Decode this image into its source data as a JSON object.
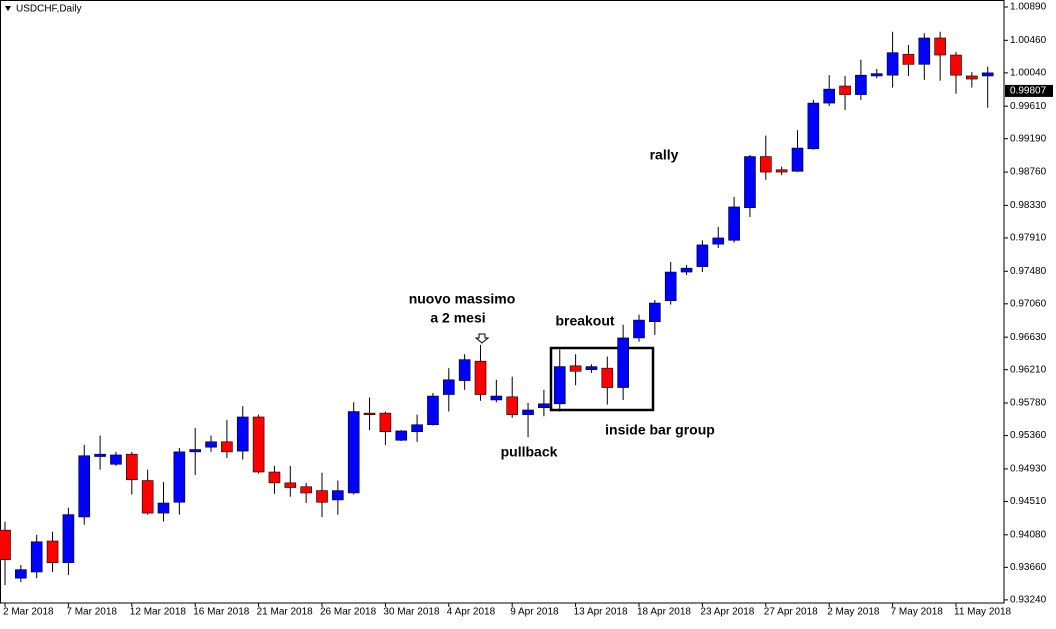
{
  "chart_data": {
    "type": "candlestick",
    "title": "USDCHF,Daily",
    "categories": [
      "2 Mar 2018",
      null,
      null,
      null,
      "7 Mar 2018",
      null,
      null,
      null,
      "12 Mar 2018",
      null,
      null,
      null,
      "16 Mar 2018",
      null,
      null,
      null,
      "21 Mar 2018",
      null,
      null,
      null,
      "26 Mar 2018",
      null,
      null,
      null,
      "30 Mar 2018",
      null,
      null,
      null,
      "4 Apr 2018",
      null,
      null,
      null,
      "9 Apr 2018",
      null,
      null,
      null,
      "13 Apr 2018",
      null,
      null,
      null,
      "18 Apr 2018",
      null,
      null,
      null,
      "23 Apr 2018",
      null,
      null,
      null,
      "27 Apr 2018",
      null,
      null,
      null,
      "2 May 2018",
      null,
      null,
      null,
      "7 May 2018",
      null,
      null,
      null,
      "11 May 2018",
      null,
      null
    ],
    "open": [
      0.9414,
      0.9352,
      0.936,
      0.94,
      0.9372,
      0.9431,
      0.9509,
      0.9499,
      0.9512,
      0.9478,
      0.9436,
      0.945,
      0.9515,
      0.9521,
      0.9528,
      0.9516,
      0.956,
      0.9489,
      0.9475,
      0.947,
      0.9465,
      0.9453,
      0.9462,
      0.9565,
      0.9565,
      0.953,
      0.9541,
      0.955,
      0.9589,
      0.9607,
      0.9632,
      0.9582,
      0.9586,
      0.9563,
      0.9572,
      0.9577,
      0.9626,
      0.9621,
      0.9623,
      0.9598,
      0.9662,
      0.9683,
      0.971,
      0.9747,
      0.9754,
      0.9783,
      0.9788,
      0.983,
      0.9896,
      0.9879,
      0.9877,
      0.9906,
      0.9965,
      0.9987,
      0.9976,
      1.0,
      1.0001,
      1.0028,
      1.0015,
      1.0049,
      1.0027,
      1.0,
      1.0
    ],
    "high": [
      0.9425,
      0.9369,
      0.9408,
      0.9412,
      0.9443,
      0.9524,
      0.9536,
      0.9515,
      0.9515,
      0.9492,
      0.9476,
      0.952,
      0.9546,
      0.9536,
      0.9556,
      0.9574,
      0.9563,
      0.9497,
      0.9497,
      0.9475,
      0.9488,
      0.9478,
      0.9579,
      0.9585,
      0.9567,
      0.9543,
      0.9563,
      0.9591,
      0.9623,
      0.9641,
      0.9653,
      0.9608,
      0.9612,
      0.9578,
      0.9595,
      0.9647,
      0.9641,
      0.9628,
      0.9638,
      0.9679,
      0.9692,
      0.9711,
      0.976,
      0.9756,
      0.9788,
      0.9805,
      0.9844,
      0.9898,
      0.9923,
      0.9883,
      0.993,
      0.9969,
      1.0001,
      1.0,
      1.0021,
      1.0009,
      1.0057,
      1.004,
      1.0055,
      1.0057,
      1.0031,
      1.0005,
      1.0012
    ],
    "low": [
      0.9343,
      0.9347,
      0.9352,
      0.936,
      0.9356,
      0.9421,
      0.9492,
      0.9497,
      0.946,
      0.9434,
      0.9425,
      0.9434,
      0.9485,
      0.9515,
      0.9507,
      0.9505,
      0.9487,
      0.9461,
      0.9457,
      0.9449,
      0.9431,
      0.9434,
      0.946,
      0.9543,
      0.9524,
      0.9529,
      0.9528,
      0.9549,
      0.9567,
      0.9595,
      0.9581,
      0.9579,
      0.9559,
      0.9534,
      0.9561,
      0.9567,
      0.9601,
      0.9617,
      0.9576,
      0.9582,
      0.9657,
      0.9666,
      0.9705,
      0.9743,
      0.9747,
      0.9778,
      0.9785,
      0.9818,
      0.9866,
      0.9872,
      0.9876,
      0.9905,
      0.9961,
      0.9956,
      0.9969,
      0.9997,
      0.9985,
      1.0,
      0.9995,
      0.9994,
      0.9977,
      0.9985,
      0.9959
    ],
    "close": [
      0.9376,
      0.9363,
      0.9399,
      0.9372,
      0.9434,
      0.951,
      0.9512,
      0.9511,
      0.9479,
      0.9436,
      0.9449,
      0.9515,
      0.9518,
      0.9528,
      0.9515,
      0.956,
      0.9489,
      0.9475,
      0.9469,
      0.9462,
      0.945,
      0.9465,
      0.9567,
      0.9563,
      0.9541,
      0.9542,
      0.955,
      0.9587,
      0.9608,
      0.9634,
      0.9589,
      0.9587,
      0.9563,
      0.9569,
      0.9577,
      0.9625,
      0.9619,
      0.9625,
      0.9598,
      0.9662,
      0.9685,
      0.9707,
      0.9747,
      0.9752,
      0.9782,
      0.9791,
      0.9831,
      0.9896,
      0.9876,
      0.9876,
      0.9907,
      0.9965,
      0.9983,
      0.9976,
      1.0001,
      1.0003,
      1.003,
      1.0015,
      1.0049,
      1.0027,
      1.0001,
      0.9996,
      1.0004
    ],
    "up_color": "#0000ff",
    "down_color": "#ff0000",
    "ylim": [
      0.932,
      1.0098
    ],
    "yticks": [
      {
        "value": 1.0089,
        "label": "1.00890"
      },
      {
        "value": 1.0046,
        "label": "1.00460"
      },
      {
        "value": 1.0004,
        "label": "1.00040"
      },
      {
        "value": 0.9961,
        "label": "0.99610"
      },
      {
        "value": 0.9919,
        "label": "0.99190"
      },
      {
        "value": 0.9876,
        "label": "0.98760"
      },
      {
        "value": 0.9833,
        "label": "0.98330"
      },
      {
        "value": 0.9791,
        "label": "0.97910"
      },
      {
        "value": 0.9748,
        "label": "0.97480"
      },
      {
        "value": 0.9706,
        "label": "0.97060"
      },
      {
        "value": 0.9663,
        "label": "0.96630"
      },
      {
        "value": 0.9621,
        "label": "0.96210"
      },
      {
        "value": 0.9578,
        "label": "0.95780"
      },
      {
        "value": 0.9536,
        "label": "0.95360"
      },
      {
        "value": 0.9493,
        "label": "0.94930"
      },
      {
        "value": 0.9451,
        "label": "0.94510"
      },
      {
        "value": 0.9408,
        "label": "0.94080"
      },
      {
        "value": 0.9366,
        "label": "0.93660"
      },
      {
        "value": 0.9324,
        "label": "0.93240"
      }
    ],
    "last_price": 0.99807,
    "annotations": [
      "nuovo massimo",
      "a 2 mesi",
      "breakout",
      "pullback",
      "inside bar group",
      "rally"
    ]
  }
}
